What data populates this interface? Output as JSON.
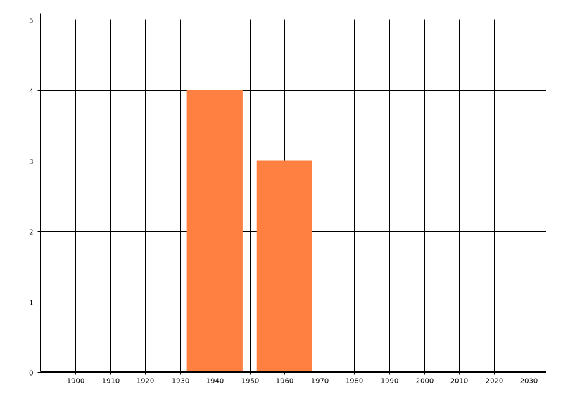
{
  "chart_data": {
    "type": "bar",
    "title": "",
    "xlabel": "",
    "ylabel": "",
    "xlim": [
      1890,
      2035
    ],
    "ylim": [
      0,
      5
    ],
    "x_ticks": [
      1900,
      1910,
      1920,
      1930,
      1940,
      1950,
      1960,
      1970,
      1980,
      1990,
      2000,
      2010,
      2020,
      2030
    ],
    "y_ticks": [
      0,
      1,
      2,
      3,
      4,
      5
    ],
    "grid": true,
    "bar_width_years": 16,
    "series": [
      {
        "x": [
          1940,
          1960
        ],
        "values": [
          4,
          3
        ],
        "color": "#FF8040"
      }
    ]
  }
}
